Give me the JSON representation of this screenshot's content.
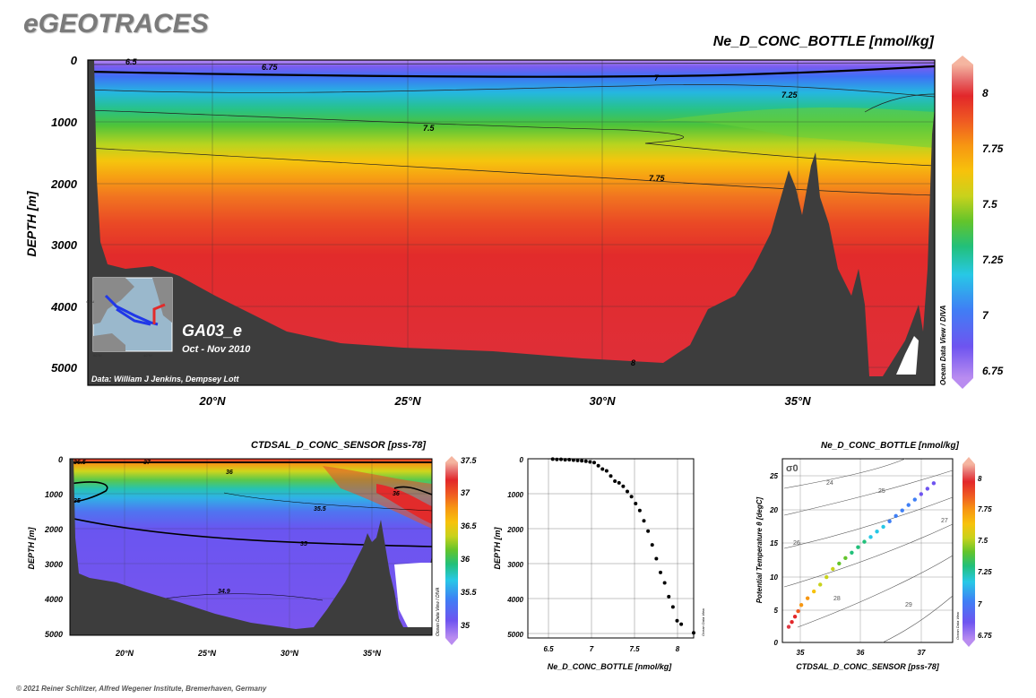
{
  "brand": "eGEOTRACES",
  "footer": "© 2021 Reiner Schlitzer, Alfred Wegener Institute, Bremerhaven, Germany",
  "colors": {
    "seafloor": "#3d3d3d",
    "odv_scale": [
      "#b98cf0",
      "#6e54f0",
      "#3f7ff5",
      "#27c8e6",
      "#22c07a",
      "#63c42b",
      "#c8d21c",
      "#f7c20b",
      "#f79712",
      "#ef5a22",
      "#e2272a",
      "#de3a45",
      "#f5a08a"
    ]
  },
  "main": {
    "title": "Ne_D_CONC_BOTTLE [nmol/kg]",
    "ylabel": "DEPTH [m]",
    "y_ticks": [
      "0",
      "1000",
      "2000",
      "3000",
      "4000",
      "5000"
    ],
    "x_ticks": [
      "20°N",
      "25°N",
      "30°N",
      "35°N"
    ],
    "colorbar_ticks": [
      "8",
      "7.75",
      "7.5",
      "7.25",
      "7",
      "6.75"
    ],
    "contour_labels": [
      "6.5",
      "6.75",
      "7",
      "7.25",
      "7.5",
      "7.75",
      "8"
    ],
    "inset_section": "GA03_e",
    "inset_date": "Oct - Nov 2010",
    "inset_credit": "Data: William J Jenkins, Dempsey Lott",
    "inset_map_ticks": [
      "40°N",
      "80°W",
      "40°W"
    ],
    "watermark": "Ocean Data View / DIVA"
  },
  "bottom_left": {
    "title": "CTDSAL_D_CONC_SENSOR [pss-78]",
    "ylabel": "DEPTH [m]",
    "y_ticks": [
      "0",
      "1000",
      "2000",
      "3000",
      "4000",
      "5000"
    ],
    "x_ticks": [
      "20°N",
      "25°N",
      "30°N",
      "35°N"
    ],
    "colorbar_ticks": [
      "37.5",
      "37",
      "36.5",
      "36",
      "35.5",
      "35"
    ],
    "contour_labels": [
      "36.5",
      "37",
      "36",
      "35",
      "35.5",
      "35",
      "36",
      "34.9"
    ],
    "watermark": "Ocean Data View / DIVA"
  },
  "bottom_mid": {
    "xlabel": "Ne_D_CONC_BOTTLE [nmol/kg]",
    "ylabel": "DEPTH [m]",
    "y_ticks": [
      "0",
      "1000",
      "2000",
      "3000",
      "4000",
      "5000"
    ],
    "x_ticks": [
      "6.5",
      "7",
      "7.5",
      "8"
    ],
    "watermark": "Ocean Data View"
  },
  "bottom_right": {
    "title": "Ne_D_CONC_BOTTLE [nmol/kg]",
    "xlabel": "CTDSAL_D_CONC_SENSOR [pss-78]",
    "ylabel": "Potential Temperature θ [degC]",
    "x_ticks": [
      "35",
      "36",
      "37"
    ],
    "y_ticks": [
      "0",
      "5",
      "10",
      "15",
      "20",
      "25"
    ],
    "sigma_symbol": "σ0",
    "sigma_labels": [
      "24",
      "25",
      "26",
      "27",
      "28",
      "29"
    ],
    "colorbar_ticks": [
      "8",
      "7.75",
      "7.5",
      "7.25",
      "7",
      "6.75"
    ],
    "watermark": "Ocean Data View"
  },
  "chart_data": [
    {
      "type": "heatmap",
      "title": "Ne_D_CONC_BOTTLE [nmol/kg]",
      "ylabel": "DEPTH [m]",
      "xlim_degN": [
        17,
        38.7
      ],
      "ylim": [
        0,
        5200
      ],
      "colorbar_range": [
        6.65,
        8.15
      ],
      "description_rows_depth_m": [
        0,
        150,
        400,
        700,
        1000,
        1400,
        2000,
        3000,
        4000,
        5000
      ],
      "description_rows_value": [
        6.6,
        6.9,
        7.15,
        7.3,
        7.45,
        7.65,
        7.85,
        7.95,
        7.95,
        8.0
      ]
    },
    {
      "type": "heatmap",
      "title": "CTDSAL_D_CONC_SENSOR [pss-78]",
      "ylabel": "DEPTH [m]",
      "xlim_degN": [
        17,
        38.7
      ],
      "ylim": [
        0,
        5200
      ],
      "colorbar_range": [
        34.85,
        37.6
      ]
    },
    {
      "type": "scatter",
      "xlabel": "Ne_D_CONC_BOTTLE [nmol/kg]",
      "ylabel": "DEPTH [m]",
      "xlim": [
        6.2,
        8.2
      ],
      "ylim": [
        0,
        5200
      ],
      "x": [
        6.5,
        6.55,
        6.6,
        6.65,
        6.7,
        6.75,
        6.8,
        6.85,
        6.9,
        6.95,
        7.0,
        7.05,
        7.1,
        7.15,
        7.2,
        7.25,
        7.3,
        7.35,
        7.4,
        7.45,
        7.5,
        7.55,
        7.6,
        7.65,
        7.7,
        7.75,
        7.8,
        7.85,
        7.9,
        7.95,
        8.0,
        8.05,
        8.2
      ],
      "y": [
        10,
        20,
        15,
        30,
        25,
        40,
        50,
        60,
        70,
        90,
        110,
        200,
        300,
        350,
        500,
        650,
        700,
        800,
        950,
        1100,
        1300,
        1500,
        1800,
        2100,
        2500,
        2900,
        3300,
        3600,
        4000,
        4300,
        4700,
        4800,
        5050
      ]
    },
    {
      "type": "scatter",
      "xlabel": "CTDSAL_D_CONC_SENSOR [pss-78]",
      "ylabel": "Potential Temperature θ [degC]",
      "xlim": [
        34.8,
        37.5
      ],
      "ylim": [
        0,
        27
      ],
      "x": [
        34.9,
        34.95,
        35.0,
        35.05,
        35.1,
        35.2,
        35.3,
        35.4,
        35.5,
        35.6,
        35.7,
        35.8,
        35.9,
        36.0,
        36.1,
        36.2,
        36.3,
        36.4,
        36.5,
        36.6,
        36.7,
        36.8,
        36.9,
        37.0,
        37.1,
        37.2
      ],
      "y": [
        2.3,
        3.0,
        3.8,
        4.6,
        5.5,
        6.5,
        7.5,
        8.5,
        9.6,
        10.8,
        11.6,
        12.4,
        13.2,
        14.0,
        14.8,
        15.5,
        16.3,
        17.0,
        17.8,
        18.6,
        19.4,
        20.2,
        21.0,
        21.8,
        22.6,
        23.4
      ],
      "color_value": [
        8.0,
        7.95,
        7.9,
        7.8,
        7.7,
        7.6,
        7.5,
        7.45,
        7.4,
        7.35,
        7.3,
        7.25,
        7.2,
        7.15,
        7.1,
        7.05,
        7.0,
        6.97,
        6.95,
        6.92,
        6.9,
        6.87,
        6.85,
        6.82,
        6.8,
        6.78
      ]
    }
  ]
}
